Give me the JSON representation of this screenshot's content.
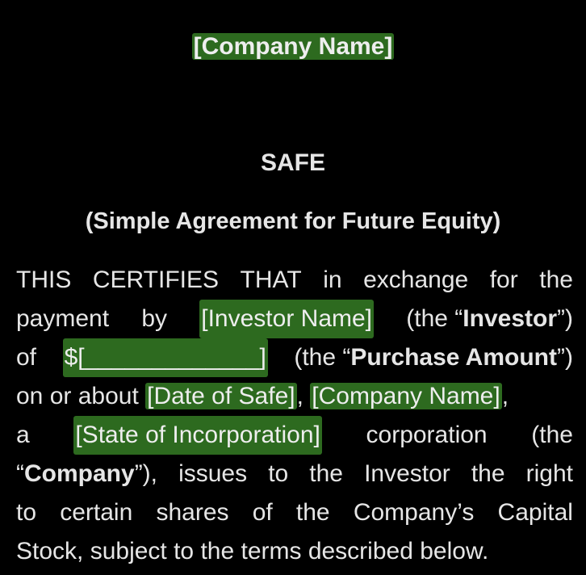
{
  "header": {
    "company_placeholder": "[Company Name]",
    "title": "SAFE",
    "subtitle": "(Simple Agreement for Future Equity)"
  },
  "body": {
    "l1_w1": "THIS",
    "l1_w2": "CERTIFIES",
    "l1_w3": "THAT",
    "l1_w4": "in",
    "l1_w5": "exchange",
    "l1_w6": "for",
    "l1_w7": "the",
    "l2_w1": "payment",
    "l2_w2": "by",
    "investor_placeholder": "[Investor Name]",
    "l2_w3": "(the “",
    "investor_term": "Investor",
    "l2_w4": "”)",
    "l3_w1": "of",
    "amount_placeholder": "$[_____________]",
    "l3_w2": "(the “",
    "purchase_term": "Purchase Amount",
    "l3_w3": "”)",
    "l4_w1": "on or about",
    "date_placeholder": "[Date of Safe]",
    "l4_comma1": ",",
    "company_placeholder": "[Company Name]",
    "l4_comma2": ",",
    "l5_w1": "a",
    "state_placeholder": "[State of Incorporation]",
    "l5_w2": "corporation",
    "l5_w3": "(the",
    "l6_w1": "“",
    "company_term": "Company",
    "l6_w2": "”),",
    "l6_w3": "issues",
    "l6_w4": "to",
    "l6_w5": "the",
    "l6_w6": "Investor",
    "l6_w7": "the",
    "l6_w8": "right",
    "l7_w1": "to",
    "l7_w2": "certain",
    "l7_w3": "shares",
    "l7_w4": "of",
    "l7_w5": "the",
    "l7_w6": "Company’s",
    "l7_w7": "Capital",
    "l8_text": "Stock, subject to the terms described below."
  },
  "colors": {
    "background": "#000000",
    "text": "#e6e6e6",
    "highlight": "#2d6a1f"
  }
}
